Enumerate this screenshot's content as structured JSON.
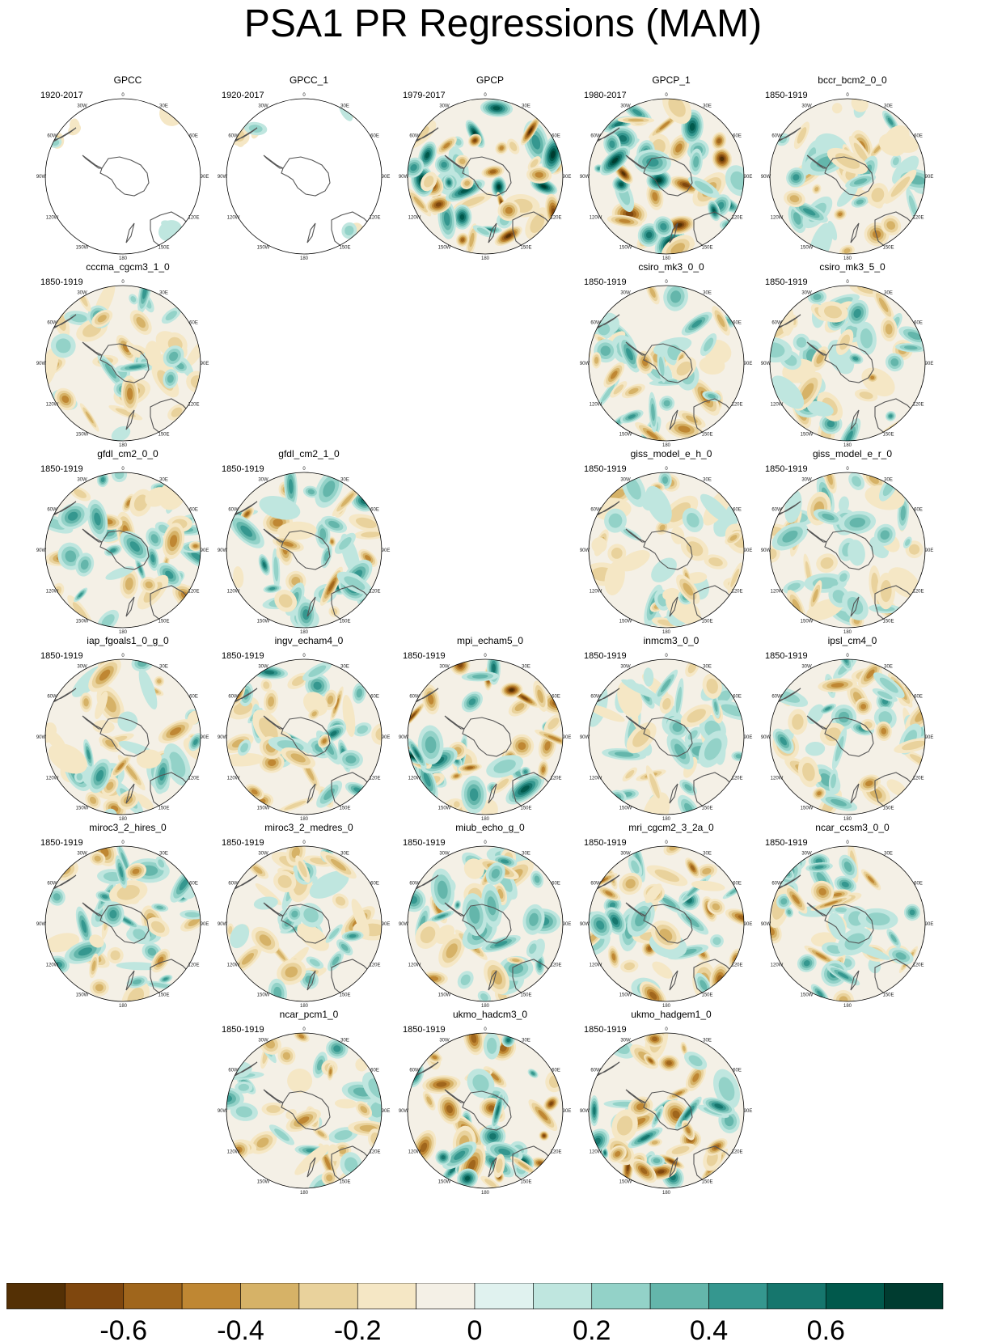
{
  "title": "PSA1 PR Regressions (MAM)",
  "colors": {
    "background": "#ffffff",
    "coast": "#555555",
    "palette": [
      "#543005",
      "#7f470e",
      "#a0661c",
      "#bf8733",
      "#d6b267",
      "#e9d29c",
      "#f5e7c5",
      "#f4f0e6",
      "#e0f2ef",
      "#bfe6df",
      "#93d2c8",
      "#64b6ab",
      "#35978f",
      "#16766d",
      "#01594c",
      "#003c30"
    ]
  },
  "lon_labels": [
    "0",
    "30E",
    "60E",
    "90E",
    "120E",
    "150E",
    "180",
    "150W",
    "120W",
    "90W",
    "60W",
    "30W"
  ],
  "chart_data": {
    "type": "heatmap",
    "projection": "south-polar-stereographic",
    "colorbar": {
      "levels": [
        -0.7,
        -0.6,
        -0.5,
        -0.4,
        -0.3,
        -0.2,
        -0.1,
        0,
        0.1,
        0.2,
        0.3,
        0.4,
        0.5,
        0.6,
        0.7
      ],
      "tick_labels": [
        "-0.6",
        "-0.4",
        "-0.2",
        "0",
        "0.2",
        "0.4",
        "0.6"
      ],
      "tick_values": [
        -0.6,
        -0.4,
        -0.2,
        0,
        0.2,
        0.4,
        0.6
      ]
    },
    "panels": [
      {
        "name": "GPCC",
        "period": "1920-2017",
        "row": 0,
        "col": 0,
        "coverage": "partial",
        "seed": 3,
        "amp": 0.25
      },
      {
        "name": "GPCC_1",
        "period": "1920-2017",
        "row": 0,
        "col": 1,
        "coverage": "partial",
        "seed": 4,
        "amp": 0.25
      },
      {
        "name": "GPCP",
        "period": "1979-2017",
        "row": 0,
        "col": 2,
        "coverage": "full",
        "seed": 7,
        "amp": 0.75
      },
      {
        "name": "GPCP_1",
        "period": "1980-2017",
        "row": 0,
        "col": 3,
        "coverage": "full",
        "seed": 11,
        "amp": 0.75
      },
      {
        "name": "bccr_bcm2_0_0",
        "period": "1850-1919",
        "row": 0,
        "col": 4,
        "coverage": "full",
        "seed": 13,
        "amp": 0.4
      },
      {
        "name": "cccma_cgcm3_1_0",
        "period": "1850-1919",
        "row": 1,
        "col": 0,
        "coverage": "full",
        "seed": 17,
        "amp": 0.4
      },
      {
        "name": "csiro_mk3_0_0",
        "period": "1850-1919",
        "row": 1,
        "col": 3,
        "coverage": "full",
        "seed": 19,
        "amp": 0.45
      },
      {
        "name": "csiro_mk3_5_0",
        "period": "1850-1919",
        "row": 1,
        "col": 4,
        "coverage": "full",
        "seed": 23,
        "amp": 0.45
      },
      {
        "name": "gfdl_cm2_0_0",
        "period": "1850-1919",
        "row": 2,
        "col": 0,
        "coverage": "full",
        "seed": 29,
        "amp": 0.45
      },
      {
        "name": "gfdl_cm2_1_0",
        "period": "1850-1919",
        "row": 2,
        "col": 1,
        "coverage": "full",
        "seed": 31,
        "amp": 0.5
      },
      {
        "name": "giss_model_e_h_0",
        "period": "1850-1919",
        "row": 2,
        "col": 3,
        "coverage": "full",
        "seed": 37,
        "amp": 0.35
      },
      {
        "name": "giss_model_e_r_0",
        "period": "1850-1919",
        "row": 2,
        "col": 4,
        "coverage": "full",
        "seed": 41,
        "amp": 0.35
      },
      {
        "name": "iap_fgoals1_0_g_0",
        "period": "1850-1919",
        "row": 3,
        "col": 0,
        "coverage": "full",
        "seed": 43,
        "amp": 0.45
      },
      {
        "name": "ingv_echam4_0",
        "period": "1850-1919",
        "row": 3,
        "col": 1,
        "coverage": "full",
        "seed": 47,
        "amp": 0.5
      },
      {
        "name": "mpi_echam5_0",
        "period": "1850-1919",
        "row": 3,
        "col": 2,
        "coverage": "full",
        "seed": 53,
        "amp": 0.7
      },
      {
        "name": "inmcm3_0_0",
        "period": "1850-1919",
        "row": 3,
        "col": 3,
        "coverage": "full",
        "seed": 59,
        "amp": 0.35
      },
      {
        "name": "ipsl_cm4_0",
        "period": "1850-1919",
        "row": 3,
        "col": 4,
        "coverage": "full",
        "seed": 61,
        "amp": 0.45
      },
      {
        "name": "miroc3_2_hires_0",
        "period": "1850-1919",
        "row": 4,
        "col": 0,
        "coverage": "full",
        "seed": 67,
        "amp": 0.45
      },
      {
        "name": "miroc3_2_medres_0",
        "period": "1850-1919",
        "row": 4,
        "col": 1,
        "coverage": "full",
        "seed": 71,
        "amp": 0.4
      },
      {
        "name": "miub_echo_g_0",
        "period": "1850-1919",
        "row": 4,
        "col": 2,
        "coverage": "full",
        "seed": 73,
        "amp": 0.45
      },
      {
        "name": "mri_cgcm2_3_2a_0",
        "period": "1850-1919",
        "row": 4,
        "col": 3,
        "coverage": "full",
        "seed": 79,
        "amp": 0.55
      },
      {
        "name": "ncar_ccsm3_0_0",
        "period": "1850-1919",
        "row": 4,
        "col": 4,
        "coverage": "full",
        "seed": 83,
        "amp": 0.45
      },
      {
        "name": "ncar_pcm1_0",
        "period": "1850-1919",
        "row": 5,
        "col": 1,
        "coverage": "full",
        "seed": 89,
        "amp": 0.4
      },
      {
        "name": "ukmo_hadcm3_0",
        "period": "1850-1919",
        "row": 5,
        "col": 2,
        "coverage": "full",
        "seed": 97,
        "amp": 0.6
      },
      {
        "name": "ukmo_hadgem1_0",
        "period": "1850-1919",
        "row": 5,
        "col": 3,
        "coverage": "full",
        "seed": 101,
        "amp": 0.6
      }
    ]
  }
}
